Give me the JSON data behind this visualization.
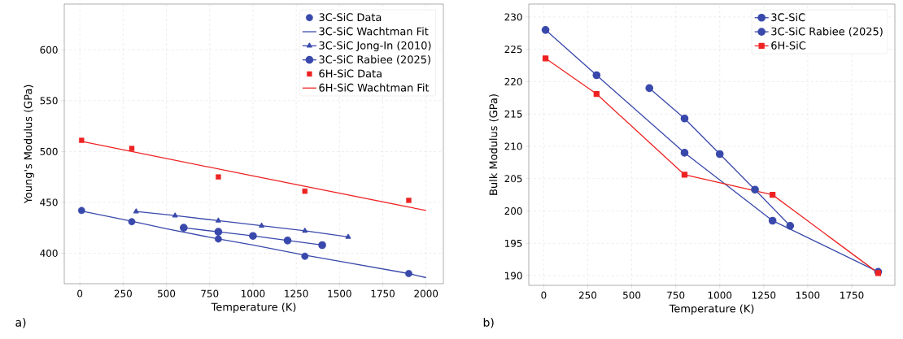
{
  "chart_data": [
    {
      "type": "line",
      "xlabel": "Temperature (K)",
      "ylabel": "Young's Modulus (GPa)",
      "annotations": [
        "a)"
      ],
      "xlim": [
        -90,
        2100
      ],
      "ylim": [
        370,
        645
      ],
      "xticks": [
        0,
        250,
        500,
        750,
        1000,
        1250,
        1500,
        1750,
        2000
      ],
      "yticks": [
        400,
        450,
        500,
        550,
        600
      ],
      "grid": true,
      "legend": "top right",
      "series": [
        {
          "name": "3C-SiC Data",
          "type": "scatter",
          "marker": "circle",
          "color": "#3949ab",
          "x": [
            10,
            300,
            800,
            1300,
            1900
          ],
          "values": [
            442,
            431,
            414,
            397,
            380
          ]
        },
        {
          "name": "3C-SiC Wachtman Fit",
          "type": "line",
          "color": "#3949ab",
          "x": [
            10,
            300,
            500,
            800,
            1000,
            1300,
            1500,
            1900,
            2000
          ],
          "values": [
            441.5,
            431.5,
            424,
            414,
            408,
            398,
            392,
            380,
            376
          ]
        },
        {
          "name": "3C-SiC Jong-In (2010)",
          "type": "line",
          "marker": "triangle",
          "color": "#3949ab",
          "x": [
            325,
            550,
            800,
            1050,
            1300,
            1550
          ],
          "values": [
            441,
            437,
            432,
            427,
            422,
            416
          ]
        },
        {
          "name": "3C-SiC Rabiee (2025)",
          "type": "line",
          "marker": "circle",
          "color": "#3949ab",
          "x": [
            600,
            800,
            1000,
            1200,
            1400
          ],
          "values": [
            425,
            421,
            417,
            412.5,
            408
          ]
        },
        {
          "name": "6H-SiC Data",
          "type": "scatter",
          "marker": "square",
          "color": "#ee2222",
          "x": [
            10,
            300,
            800,
            1300,
            1900
          ],
          "values": [
            511,
            503,
            475,
            461,
            452
          ]
        },
        {
          "name": "6H-SiC Wachtman Fit",
          "type": "line",
          "color": "#ee2222",
          "x": [
            10,
            1000,
            2000
          ],
          "values": [
            510,
            476,
            442
          ]
        }
      ]
    },
    {
      "type": "line",
      "xlabel": "Temperature (K)",
      "ylabel": "Bulk Modulus (GPa)",
      "annotations": [
        "b)"
      ],
      "xlim": [
        -85,
        1995
      ],
      "ylim": [
        188.5,
        232
      ],
      "xticks": [
        0,
        250,
        500,
        750,
        1000,
        1250,
        1500,
        1750
      ],
      "yticks": [
        190,
        195,
        200,
        205,
        210,
        215,
        220,
        225,
        230
      ],
      "grid": true,
      "legend": "top right",
      "series": [
        {
          "name": "3C-SiC",
          "marker": "circle",
          "color": "#3949ab",
          "x": [
            10,
            300,
            800,
            1300,
            1900
          ],
          "values": [
            228,
            221,
            209,
            198.5,
            190.6
          ]
        },
        {
          "name": "3C-SiC Rabiee (2025)",
          "marker": "circle",
          "color": "#3949ab",
          "x": [
            600,
            800,
            1000,
            1200,
            1400
          ],
          "values": [
            219,
            214.3,
            208.8,
            203.3,
            197.7
          ]
        },
        {
          "name": "6H-SiC",
          "marker": "square",
          "color": "#ee2222",
          "x": [
            10,
            300,
            800,
            1300,
            1900
          ],
          "values": [
            223.6,
            218.1,
            205.6,
            202.5,
            190.4
          ]
        }
      ]
    }
  ]
}
